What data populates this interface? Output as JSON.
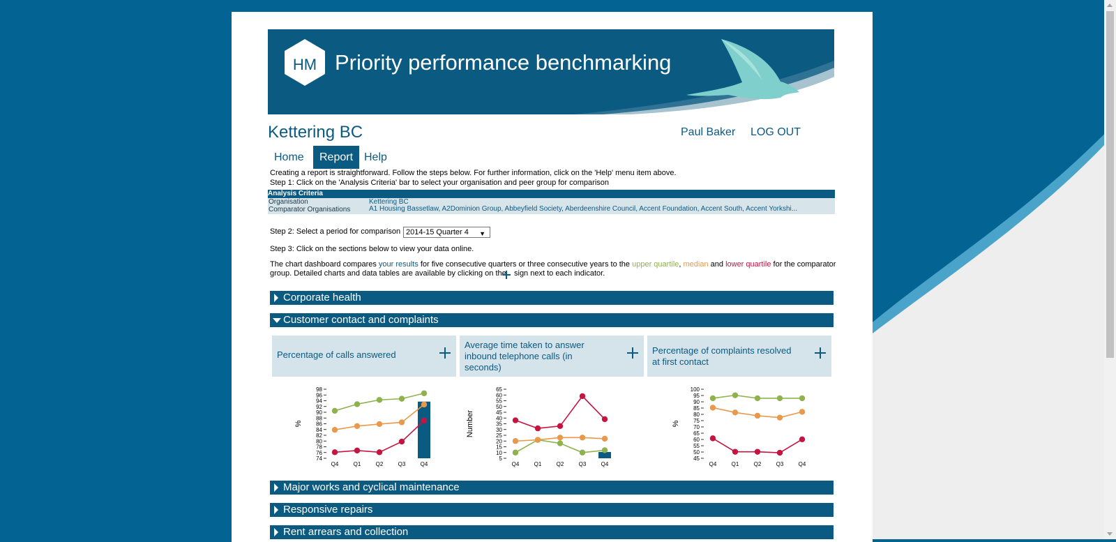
{
  "banner": {
    "title": "Priority performance benchmarking",
    "logo_text": "HM"
  },
  "org": {
    "name": "Kettering BC"
  },
  "user": {
    "name": "Paul Baker",
    "logout_label": "LOG OUT"
  },
  "nav": {
    "items": [
      {
        "label": "Home"
      },
      {
        "label": "Report"
      },
      {
        "label": "Help"
      }
    ]
  },
  "instructions": {
    "intro": "Creating a report is straightforward. Follow the steps below. For further information, click on the 'Help' menu item above.",
    "step1": "Step 1: Click on the 'Analysis Criteria' bar to select your organisation and peer group for comparison",
    "step2_label": "Step 2: Select a period for comparison",
    "step3": "Step 3: Click on the sections below to view your data online.",
    "dash_part1": "The chart dashboard compares ",
    "dash_your_results": "your results",
    "dash_part2": " for five consecutive quarters or three consecutive years to the ",
    "dash_upper": "upper quartile",
    "dash_comma": ", ",
    "dash_median": "median",
    "dash_and": " and ",
    "dash_lower": "lower quartile",
    "dash_part3": " for the comparator",
    "dash_line2a": "group. Detailed charts and data tables are available by clicking on the",
    "dash_line2b": "sign next to each indicator."
  },
  "analysis_criteria": {
    "header": "Analysis Criteria",
    "organisation_label": "Organisation",
    "organisation_value": "Kettering BC",
    "comparators_label": "Comparator Organisations",
    "comparators_value": "A1 Housing Bassetlaw, A2Dominion Group, Abbeyfield Society, Aberdeenshire Council, Accent Foundation, Accent South, Accent Yorkshi..."
  },
  "period": {
    "selected": "2014-15 Quarter 4"
  },
  "colors": {
    "brand": "#0b5a82",
    "upper_quartile": "#8eb24d",
    "median": "#e8994b",
    "lower_quartile": "#c4143f",
    "panel_bg": "#d5e3ea"
  },
  "sections": [
    {
      "label": "Corporate health",
      "expanded": false
    },
    {
      "label": "Customer contact and complaints",
      "expanded": true
    },
    {
      "label": "Major works and cyclical maintenance",
      "expanded": false
    },
    {
      "label": "Responsive repairs",
      "expanded": false
    },
    {
      "label": "Rent arrears and collection",
      "expanded": false
    }
  ],
  "panels": [
    {
      "title": "Percentage of calls answered"
    },
    {
      "title_lines": [
        "Average time taken to answer",
        "inbound telephone calls (in",
        "seconds)"
      ]
    },
    {
      "title_lines": [
        "Percentage of complaints resolved",
        "at first contact"
      ]
    }
  ],
  "chart_data": [
    {
      "type": "line",
      "categories": [
        "Q4",
        "Q1",
        "Q2",
        "Q3",
        "Q4"
      ],
      "ylabel": "%",
      "ylim": [
        74,
        98
      ],
      "yticks": [
        74,
        76,
        78,
        80,
        82,
        84,
        86,
        88,
        90,
        92,
        94,
        96,
        98
      ],
      "series": [
        {
          "name": "upper quartile",
          "values": [
            90.5,
            92.8,
            94.3,
            94.7,
            96.6
          ]
        },
        {
          "name": "median",
          "values": [
            83.9,
            85.2,
            85.9,
            86.5,
            92.7
          ]
        },
        {
          "name": "lower quartile",
          "values": [
            76.1,
            76.7,
            76.1,
            79.8,
            87.1
          ]
        }
      ],
      "your_results": {
        "category_index": 4,
        "value": 93.7
      }
    },
    {
      "type": "line",
      "categories": [
        "Q4",
        "Q1",
        "Q2",
        "Q3",
        "Q4"
      ],
      "ylabel": "Number",
      "ylim": [
        5,
        65
      ],
      "yticks": [
        5,
        10,
        15,
        20,
        25,
        30,
        35,
        40,
        45,
        50,
        55,
        60,
        65
      ],
      "series": [
        {
          "name": "upper quartile",
          "values": [
            10,
            21,
            18,
            10,
            12
          ]
        },
        {
          "name": "median",
          "values": [
            20,
            21,
            23,
            23,
            22
          ]
        },
        {
          "name": "lower quartile",
          "values": [
            38,
            31,
            33,
            59,
            39
          ]
        }
      ],
      "your_results": {
        "category_index": 4,
        "value": 10.5
      }
    },
    {
      "type": "line",
      "categories": [
        "Q4",
        "Q1",
        "Q2",
        "Q3",
        "Q4"
      ],
      "ylabel": "%",
      "ylim": [
        45,
        100
      ],
      "yticks": [
        45,
        50,
        55,
        60,
        65,
        70,
        75,
        80,
        85,
        90,
        95,
        100
      ],
      "series": [
        {
          "name": "upper quartile",
          "values": [
            92.8,
            95.2,
            92.8,
            92.8,
            92.8
          ]
        },
        {
          "name": "median",
          "values": [
            85.3,
            81.5,
            78.9,
            77.4,
            82.0
          ]
        },
        {
          "name": "lower quartile",
          "values": [
            60.9,
            50.2,
            50.2,
            49.4,
            60.1
          ]
        }
      ]
    }
  ]
}
